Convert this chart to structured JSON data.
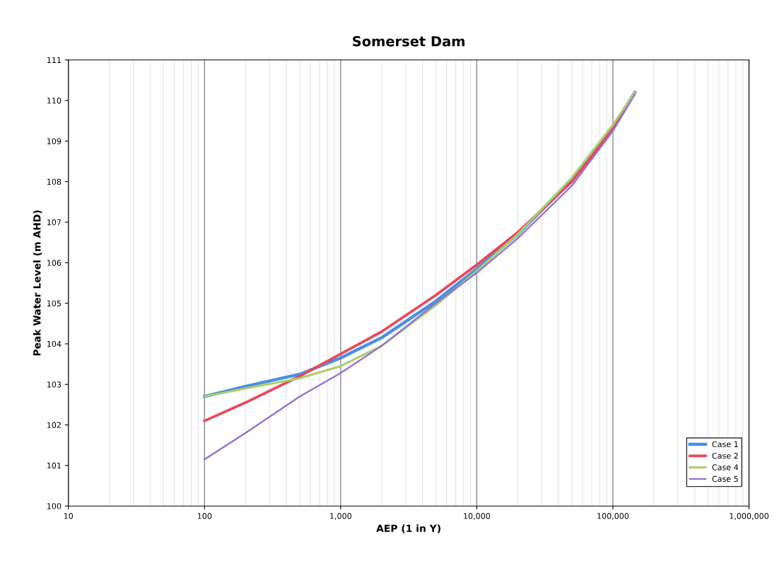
{
  "chart_data": {
    "type": "line",
    "title": "Somerset Dam",
    "xlabel": "AEP (1 in Y)",
    "ylabel": "Peak Water Level (m AHD)",
    "log": "x",
    "x": [
      100,
      200,
      500,
      1000,
      2000,
      5000,
      10000,
      20000,
      50000,
      100000,
      145000
    ],
    "series": [
      {
        "name": "Case 1",
        "color": "#4a90e2",
        "values": [
          102.7,
          102.95,
          103.25,
          103.65,
          104.15,
          105.05,
          105.85,
          106.7,
          108.05,
          109.35,
          110.2
        ]
      },
      {
        "name": "Case 2",
        "color": "#e8485a",
        "values": [
          102.1,
          102.55,
          103.2,
          103.75,
          104.3,
          105.2,
          105.95,
          106.75,
          108.0,
          109.3,
          110.2
        ]
      },
      {
        "name": "Case 4",
        "color": "#a8cf6e",
        "values": [
          102.7,
          102.9,
          103.15,
          103.45,
          103.95,
          104.95,
          105.8,
          106.7,
          108.1,
          109.4,
          110.2
        ]
      },
      {
        "name": "Case 5",
        "color": "#9370d8",
        "values": [
          101.15,
          101.8,
          102.7,
          103.28,
          103.95,
          105.0,
          105.75,
          106.6,
          107.9,
          109.25,
          110.15
        ]
      }
    ],
    "xlim": [
      10,
      1000000
    ],
    "xticks": [
      10,
      100,
      {
        "value": 1000,
        "label": "1,000"
      },
      {
        "value": 10000,
        "label": "10,000"
      },
      {
        "value": 100000,
        "label": "100,000"
      },
      {
        "value": 1000000,
        "label": "1,000,000"
      }
    ],
    "ylim": [
      100,
      111
    ],
    "yticks": [
      100,
      101,
      102,
      103,
      104,
      105,
      106,
      107,
      108,
      109,
      110,
      111
    ],
    "grid": "x",
    "legend": "bottom right",
    "marker": "none",
    "line_style": "solid"
  }
}
